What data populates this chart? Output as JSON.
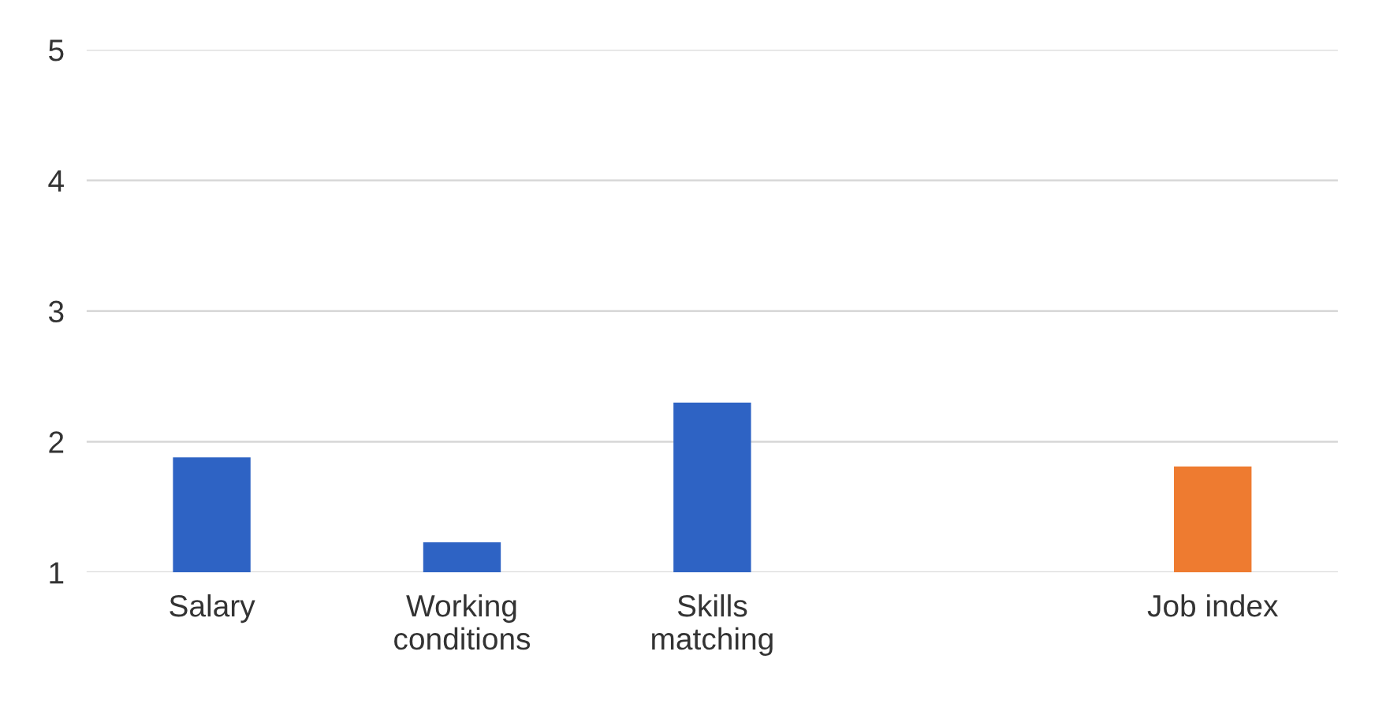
{
  "chart_data": {
    "type": "bar",
    "categories": [
      "Salary",
      "Working\nconditions",
      "Skills\nmatching",
      null,
      "Job index"
    ],
    "values": [
      1.88,
      1.23,
      2.3,
      null,
      1.81
    ],
    "colors": [
      "#2e63c4",
      "#2e63c4",
      "#2e63c4",
      "#2e63c4",
      "#ee7b30"
    ],
    "ylim": [
      1,
      5
    ],
    "yticks": [
      1,
      2,
      3,
      4,
      5
    ],
    "grid": "y"
  }
}
